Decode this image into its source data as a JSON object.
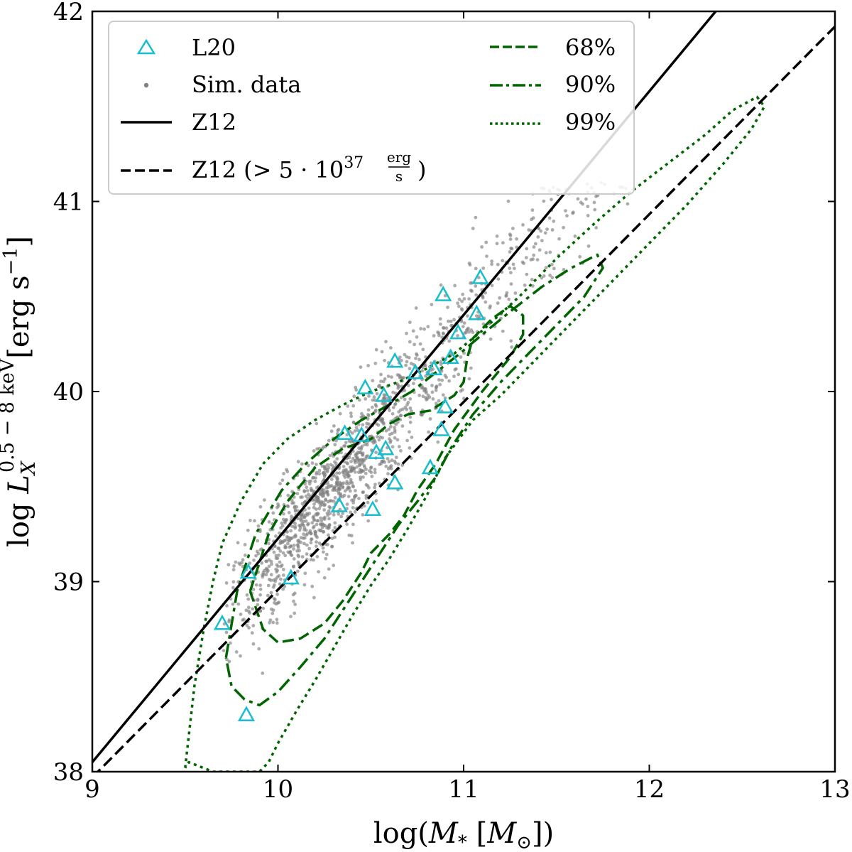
{
  "chart_data": {
    "type": "scatter",
    "title": "",
    "xlabel": "log(M* [M⊙])",
    "ylabel": "log L_X^{0.5-8 keV} [erg s^-1]",
    "xlim": [
      9,
      13
    ],
    "ylim": [
      38,
      42
    ],
    "xticks": [
      9,
      10,
      11,
      12,
      13
    ],
    "yticks": [
      38,
      39,
      40,
      41,
      42
    ],
    "xtick_labels": [
      "9",
      "10",
      "11",
      "12",
      "13"
    ],
    "ytick_labels": [
      "38",
      "39",
      "40",
      "41",
      "42"
    ],
    "xlabel_parts": {
      "pre": "log(",
      "var": "M",
      "sub": "*",
      "mid": " [",
      "var2": "M",
      "sub2": "⊙",
      "post": "])"
    },
    "ylabel_parts": {
      "pre": "log ",
      "var": "L",
      "sub": "X",
      "sup": "0.5 − 8 keV",
      "post": "[erg s",
      "exp": "−1",
      "close": "]"
    },
    "legend_position": "top-left",
    "series": [
      {
        "name": "L20",
        "kind": "markers",
        "marker": "triangle-open",
        "color": "#17becf",
        "points": [
          [
            9.7,
            38.78
          ],
          [
            9.83,
            38.3
          ],
          [
            9.84,
            39.05
          ],
          [
            10.07,
            39.02
          ],
          [
            10.33,
            39.4
          ],
          [
            10.36,
            39.78
          ],
          [
            10.45,
            39.77
          ],
          [
            10.47,
            40.02
          ],
          [
            10.51,
            39.38
          ],
          [
            10.53,
            39.68
          ],
          [
            10.57,
            39.98
          ],
          [
            10.58,
            39.7
          ],
          [
            10.63,
            40.16
          ],
          [
            10.63,
            39.52
          ],
          [
            10.74,
            40.1
          ],
          [
            10.82,
            39.6
          ],
          [
            10.84,
            40.12
          ],
          [
            10.88,
            39.8
          ],
          [
            10.89,
            40.51
          ],
          [
            10.9,
            39.92
          ],
          [
            10.93,
            40.18
          ],
          [
            10.97,
            40.31
          ],
          [
            11.07,
            40.41
          ],
          [
            11.09,
            40.6
          ]
        ]
      },
      {
        "name": "Sim. data",
        "kind": "scatter",
        "color": "#808080"
      },
      {
        "name": "Z12",
        "kind": "line",
        "style": "solid",
        "color": "#000000",
        "x": [
          9,
          12.4
        ],
        "y": [
          38.05,
          42.05
        ]
      },
      {
        "name": "Z12 (>5·10^37 erg/s)",
        "kind": "line",
        "style": "dashed",
        "color": "#000000",
        "x": [
          9,
          13
        ],
        "y": [
          37.97,
          41.92
        ]
      },
      {
        "name": "68%",
        "kind": "contour",
        "style": "dashed",
        "color": "#006400",
        "x": [
          9.85,
          9.95,
          10.05,
          10.2,
          10.35,
          10.5,
          10.6,
          10.7,
          10.82,
          10.95,
          11.0,
          11.02,
          11.05,
          11.15,
          11.25,
          11.32,
          11.32,
          11.25,
          11.1,
          10.95,
          10.85,
          10.75,
          10.68,
          10.6,
          10.5,
          10.45,
          10.35,
          10.25,
          10.12,
          10.0,
          9.92,
          9.85
        ],
        "y": [
          38.95,
          39.25,
          39.42,
          39.6,
          39.7,
          39.75,
          39.83,
          39.88,
          39.9,
          39.98,
          40.05,
          40.18,
          40.28,
          40.38,
          40.45,
          40.4,
          40.3,
          40.18,
          40.0,
          39.8,
          39.62,
          39.48,
          39.35,
          39.25,
          39.15,
          39.05,
          38.9,
          38.78,
          38.7,
          38.68,
          38.75,
          38.95
        ]
      },
      {
        "name": "90%",
        "kind": "contour",
        "style": "dashdot",
        "color": "#006400",
        "x": [
          9.72,
          9.78,
          9.88,
          10.02,
          10.15,
          10.3,
          10.45,
          10.58,
          10.72,
          10.85,
          10.98,
          11.1,
          11.25,
          11.42,
          11.58,
          11.72,
          11.75,
          11.65,
          11.5,
          11.35,
          11.2,
          11.05,
          10.93,
          10.85,
          10.75,
          10.65,
          10.55,
          10.45,
          10.35,
          10.25,
          10.12,
          10.0,
          9.9,
          9.82,
          9.75,
          9.72
        ],
        "y": [
          38.6,
          38.95,
          39.25,
          39.48,
          39.62,
          39.75,
          39.85,
          39.92,
          40.0,
          40.1,
          40.2,
          40.3,
          40.42,
          40.55,
          40.65,
          40.72,
          40.65,
          40.5,
          40.35,
          40.2,
          40.05,
          39.88,
          39.7,
          39.55,
          39.42,
          39.3,
          39.15,
          39.0,
          38.85,
          38.7,
          38.55,
          38.42,
          38.35,
          38.38,
          38.45,
          38.6
        ]
      },
      {
        "name": "99%",
        "kind": "contour",
        "style": "dotted",
        "color": "#006400",
        "x": [
          9.5,
          9.55,
          9.6,
          9.65,
          9.7,
          9.8,
          9.92,
          10.05,
          10.2,
          10.35,
          10.5,
          10.65,
          10.8,
          10.95,
          11.1,
          11.3,
          11.5,
          11.7,
          11.9,
          12.1,
          12.3,
          12.45,
          12.58,
          12.62,
          12.55,
          12.4,
          12.2,
          12.0,
          11.8,
          11.6,
          11.4,
          11.2,
          11.05,
          10.9,
          10.8,
          10.7,
          10.6,
          10.5,
          10.4,
          10.3,
          10.2,
          10.1,
          10.0,
          9.95,
          9.9,
          9.8,
          9.65,
          9.52,
          9.5
        ],
        "y": [
          38.02,
          38.45,
          38.75,
          39.0,
          39.2,
          39.42,
          39.62,
          39.75,
          39.85,
          39.93,
          40.0,
          40.05,
          40.12,
          40.2,
          40.32,
          40.5,
          40.7,
          40.88,
          41.05,
          41.2,
          41.35,
          41.48,
          41.55,
          41.5,
          41.38,
          41.2,
          40.98,
          40.78,
          40.58,
          40.38,
          40.18,
          39.98,
          39.85,
          39.65,
          39.45,
          39.28,
          39.12,
          38.98,
          38.82,
          38.65,
          38.48,
          38.32,
          38.15,
          38.05,
          38.0,
          38.0,
          38.0,
          38.05,
          38.02
        ]
      }
    ],
    "legend": [
      {
        "label": "L20"
      },
      {
        "label": "Sim. data"
      },
      {
        "label": "Z12"
      },
      {
        "label": "Z12 (> 5 · 10",
        "exp": "37",
        "num": "erg",
        "den": "s",
        "close": ")"
      },
      {
        "label": "68%"
      },
      {
        "label": "90%"
      },
      {
        "label": "99%"
      }
    ]
  }
}
